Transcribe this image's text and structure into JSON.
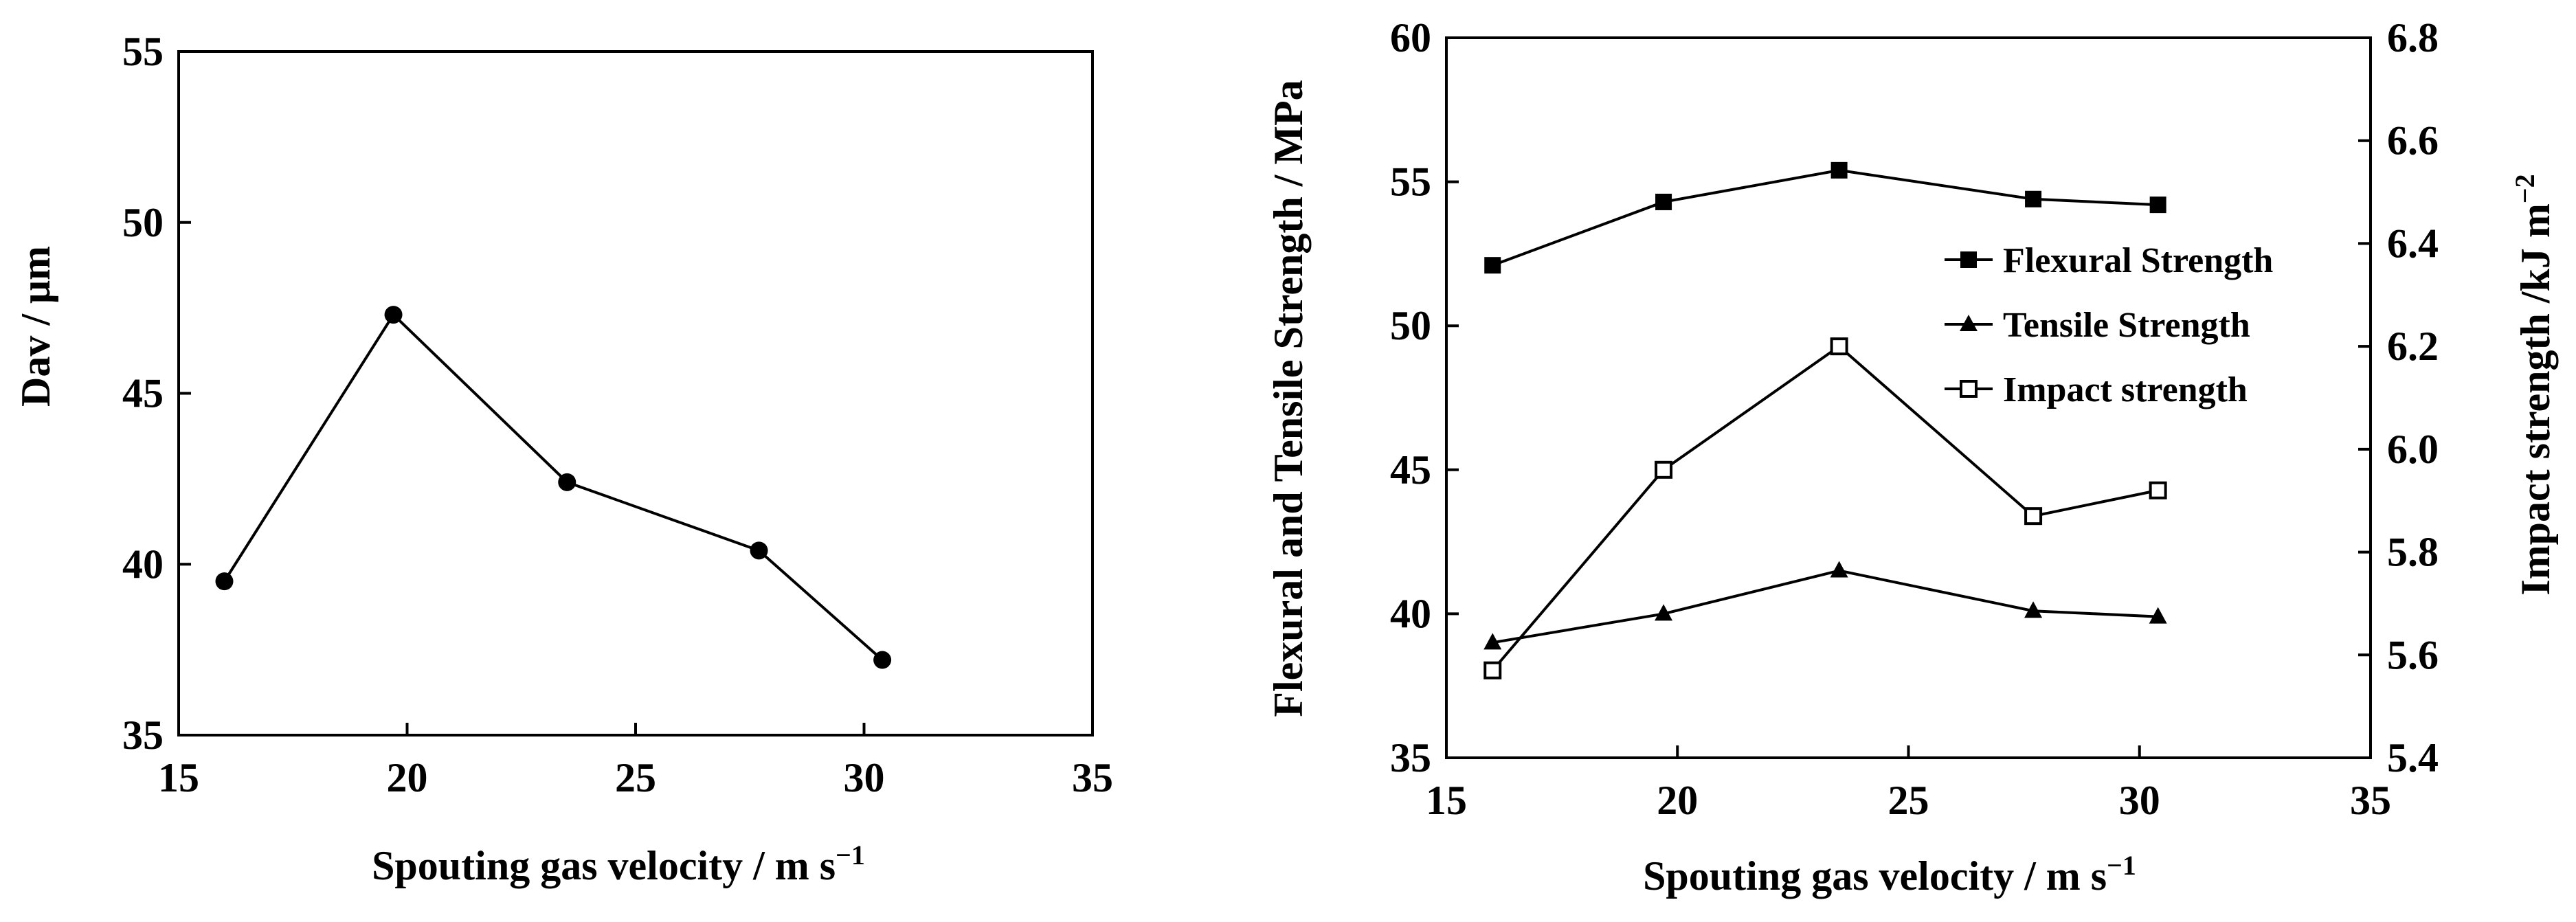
{
  "chart_data": [
    {
      "type": "line",
      "xlabel": "Spouting gas velocity  / m s",
      "xlabel_sup": "−1",
      "ylabel": "Dav / μm",
      "xlim": [
        15,
        35
      ],
      "ylim": [
        35,
        55
      ],
      "xticks": [
        "15",
        "20",
        "25",
        "30",
        "35"
      ],
      "yticks": [
        "35",
        "40",
        "45",
        "50",
        "55"
      ],
      "series": [
        {
          "marker": "filled-circle",
          "x": [
            16.0,
            19.7,
            23.5,
            27.7,
            30.4
          ],
          "y": [
            39.5,
            47.3,
            42.4,
            40.4,
            37.2
          ]
        }
      ]
    },
    {
      "type": "line",
      "xlabel": "Spouting gas velocity  / m s",
      "xlabel_sup": "−1",
      "ylabel": "Flexural and Tensile Strength / MPa",
      "y2label": "Impact strength  /kJ m",
      "y2label_sup": "−2",
      "xlim": [
        15,
        35
      ],
      "ylim": [
        35,
        60
      ],
      "y2lim": [
        5.4,
        6.8
      ],
      "xticks": [
        "15",
        "20",
        "25",
        "30",
        "35"
      ],
      "yticks": [
        "35",
        "40",
        "45",
        "50",
        "55",
        "60"
      ],
      "y2ticks": [
        "5.4",
        "5.6",
        "5.8",
        "6.0",
        "6.2",
        "6.4",
        "6.6",
        "6.8"
      ],
      "legend_position": "right",
      "series": [
        {
          "name": "Flexural Strength",
          "marker": "filled-square",
          "axis": "left",
          "x": [
            16.0,
            19.7,
            23.5,
            27.7,
            30.4
          ],
          "y": [
            52.1,
            54.3,
            55.4,
            54.4,
            54.2
          ]
        },
        {
          "name": "Tensile Strength",
          "marker": "filled-triangle",
          "axis": "left",
          "x": [
            16.0,
            19.7,
            23.5,
            27.7,
            30.4
          ],
          "y": [
            39.0,
            40.0,
            41.5,
            40.1,
            39.9
          ]
        },
        {
          "name": "Impact strength",
          "marker": "open-square",
          "axis": "right",
          "x": [
            16.0,
            19.7,
            23.5,
            27.7,
            30.4
          ],
          "y": [
            5.57,
            5.96,
            6.2,
            5.87,
            5.92
          ]
        }
      ]
    }
  ]
}
